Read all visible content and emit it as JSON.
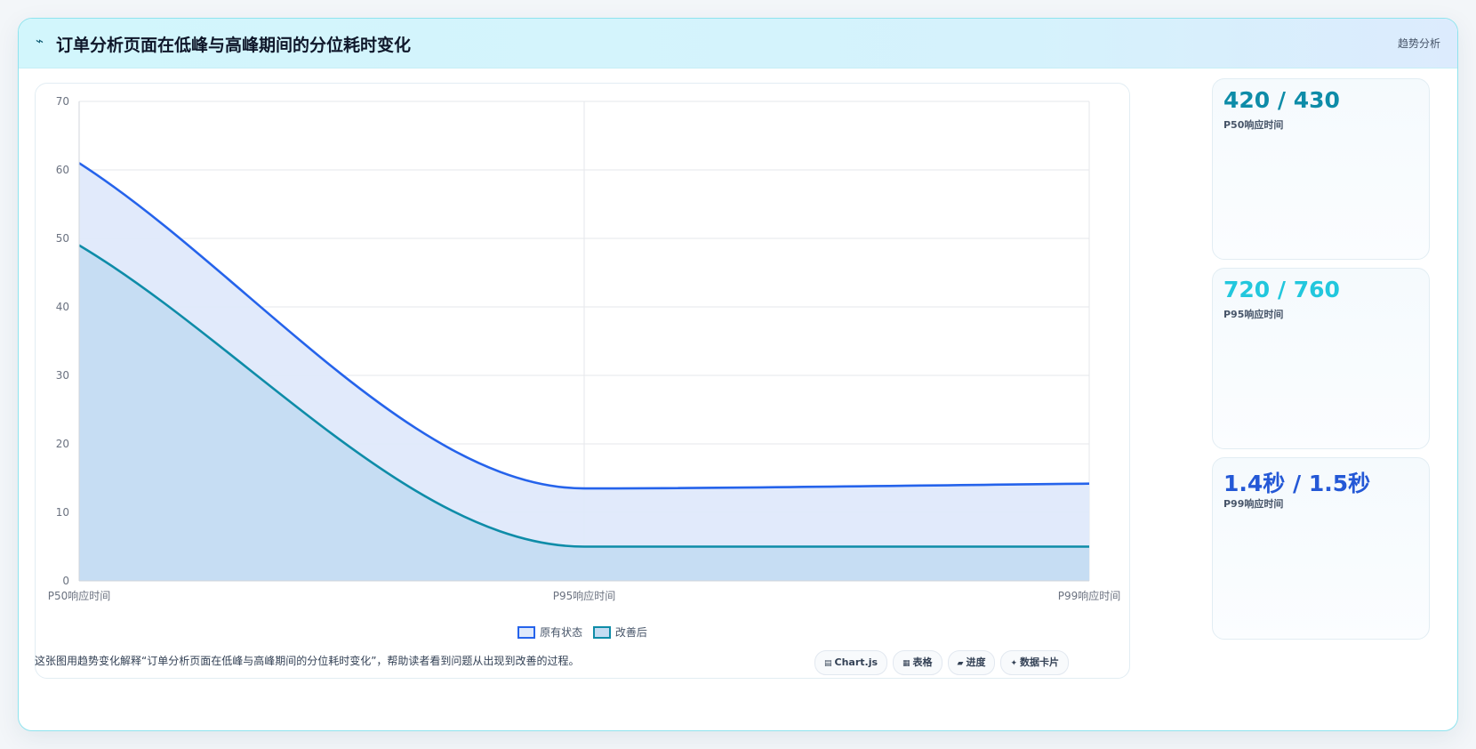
{
  "header": {
    "icon": "⌁",
    "title": "订单分析页面在低峰与高峰期间的分位耗时变化",
    "tag": "趋势分析"
  },
  "chart_data": {
    "type": "area",
    "categories": [
      "P50响应时间",
      "P95响应时间",
      "P99响应时间"
    ],
    "series": [
      {
        "name": "原有状态",
        "values": [
          61,
          13.5,
          14.2
        ],
        "color": "#2563eb",
        "fill": "#dfe9fb"
      },
      {
        "name": "改善后",
        "values": [
          49,
          5,
          5
        ],
        "color": "#0e8ca8",
        "fill": "#c4dcf2"
      }
    ],
    "ylim": [
      0,
      70
    ],
    "yticks": [
      0,
      10,
      20,
      30,
      40,
      50,
      60,
      70
    ],
    "grid": true,
    "legend": "bottom",
    "smooth": true
  },
  "stats": [
    {
      "value": "420 / 430",
      "label": "P50响应时间",
      "color": "#0e8ca8"
    },
    {
      "value": "720 / 760",
      "label": "P95响应时间",
      "color": "#22c7dd"
    },
    {
      "value": "1.4秒 / 1.5秒",
      "label": "P99响应时间",
      "color": "#2458d6"
    }
  ],
  "footer": {
    "text": "这张图用趋势变化解释“订单分析页面在低峰与高峰期间的分位耗时变化”，帮助读者看到问题从出现到改善的过程。",
    "pills": [
      {
        "icon": "▤",
        "label": "Chart.js"
      },
      {
        "icon": "▦",
        "label": "表格"
      },
      {
        "icon": "▰",
        "label": "进度"
      },
      {
        "icon": "✦",
        "label": "数据卡片"
      }
    ]
  }
}
